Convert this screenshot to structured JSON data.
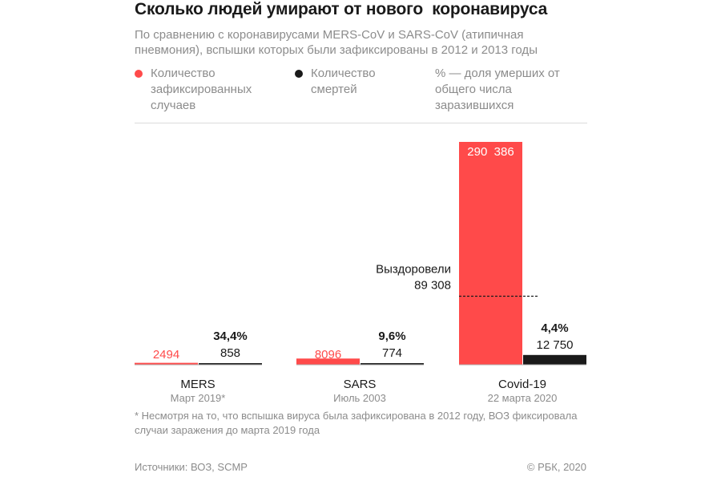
{
  "header": {
    "title": "Сколько людей умирают от нового  коронавируса",
    "subtitle": "По сравнению с коронавирусами MERS-CoV и SARS-CoV (атипичная пневмония), вспышки которых были зафиксированы в 2012 и 2013 годы"
  },
  "legend": {
    "cases": "Количество зафиксированных случаев",
    "deaths": "Количество смертей",
    "percent_note": "% — доля умерших от общего числа заразившихся"
  },
  "chart_data": {
    "type": "bar",
    "categories": [
      "MERS",
      "SARS",
      "Covid-19"
    ],
    "category_dates": [
      "Март 2019*",
      "Июль 2003",
      "22 марта 2020"
    ],
    "series": [
      {
        "name": "Количество зафиксированных случаев",
        "values": [
          2494,
          8096,
          290386
        ],
        "labels": [
          "2494",
          "8096",
          "290  386"
        ],
        "color": "#ff4a4a"
      },
      {
        "name": "Количество смертей",
        "values": [
          858,
          774,
          12750
        ],
        "labels": [
          "858",
          "774",
          "12 750"
        ],
        "color": "#1a1a1a"
      }
    ],
    "death_rate": [
      "34,4%",
      "9,6%",
      "4,4%"
    ],
    "annotation": {
      "category": "Covid-19",
      "label": "Выздоровели",
      "value": 89308,
      "value_label": "89 308"
    },
    "ylim": [
      0,
      290386
    ],
    "grid": false,
    "legend_position": "top"
  },
  "footnote": "* Несмотря на то, что вспышка вируса была зафиксирована в 2012 году, ВОЗ фиксировала случаи заражения до марта 2019 года",
  "source": "Источники: ВОЗ, SCMP",
  "copyright": "© РБК, 2020",
  "colors": {
    "cases": "#ff4a4a",
    "deaths": "#1a1a1a",
    "muted": "#8c8c8c"
  }
}
